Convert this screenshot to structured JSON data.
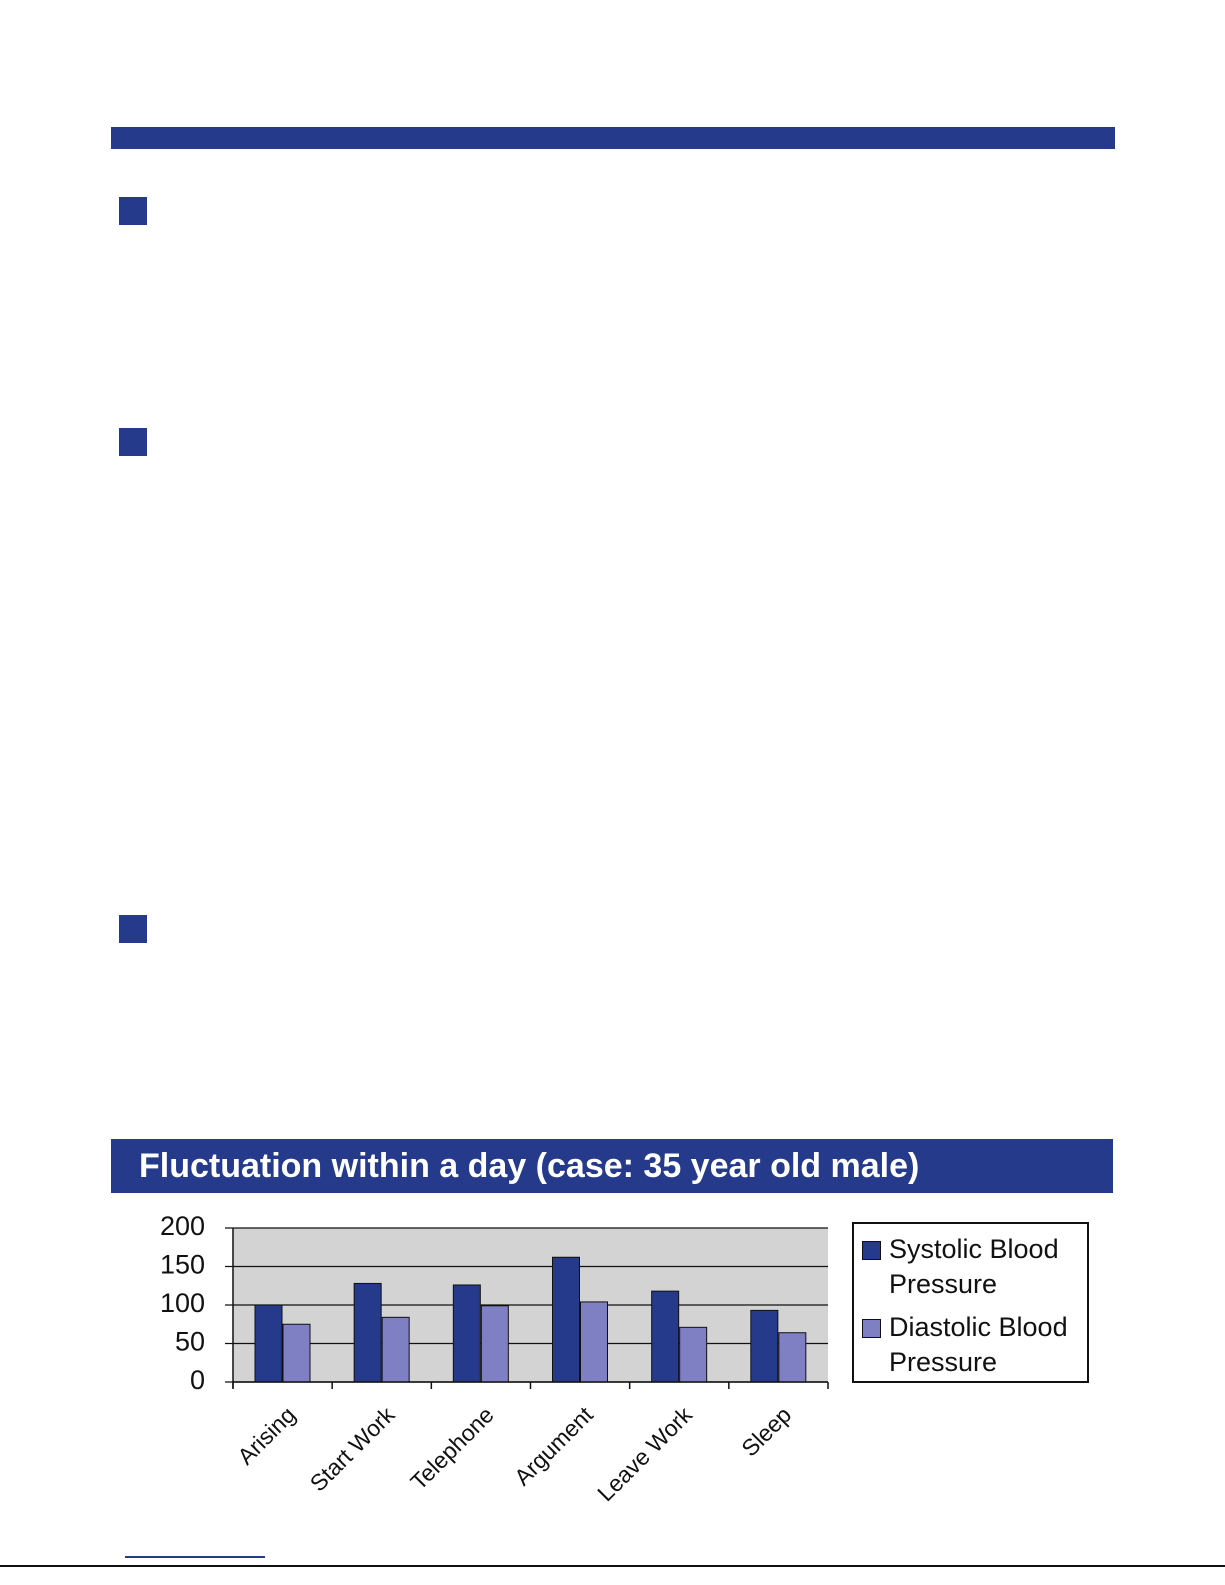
{
  "chart_data": {
    "type": "bar",
    "title": "Fluctuation within a day (case: 35 year old male)",
    "categories": [
      "Arising",
      "Start Work",
      "Telephone",
      "Argument",
      "Leave Work",
      "Sleep"
    ],
    "series": [
      {
        "name": "Systolic Blood Pressure",
        "color": "#253a8a",
        "values": [
          100,
          128,
          126,
          162,
          118,
          93
        ]
      },
      {
        "name": "Diastolic Blood Pressure",
        "color": "#7f7fc4",
        "values": [
          75,
          84,
          99,
          104,
          71,
          64
        ]
      }
    ],
    "ylim": [
      0,
      200
    ],
    "yticks": [
      0,
      50,
      100,
      150,
      200
    ],
    "grid": true,
    "legend": "right"
  }
}
